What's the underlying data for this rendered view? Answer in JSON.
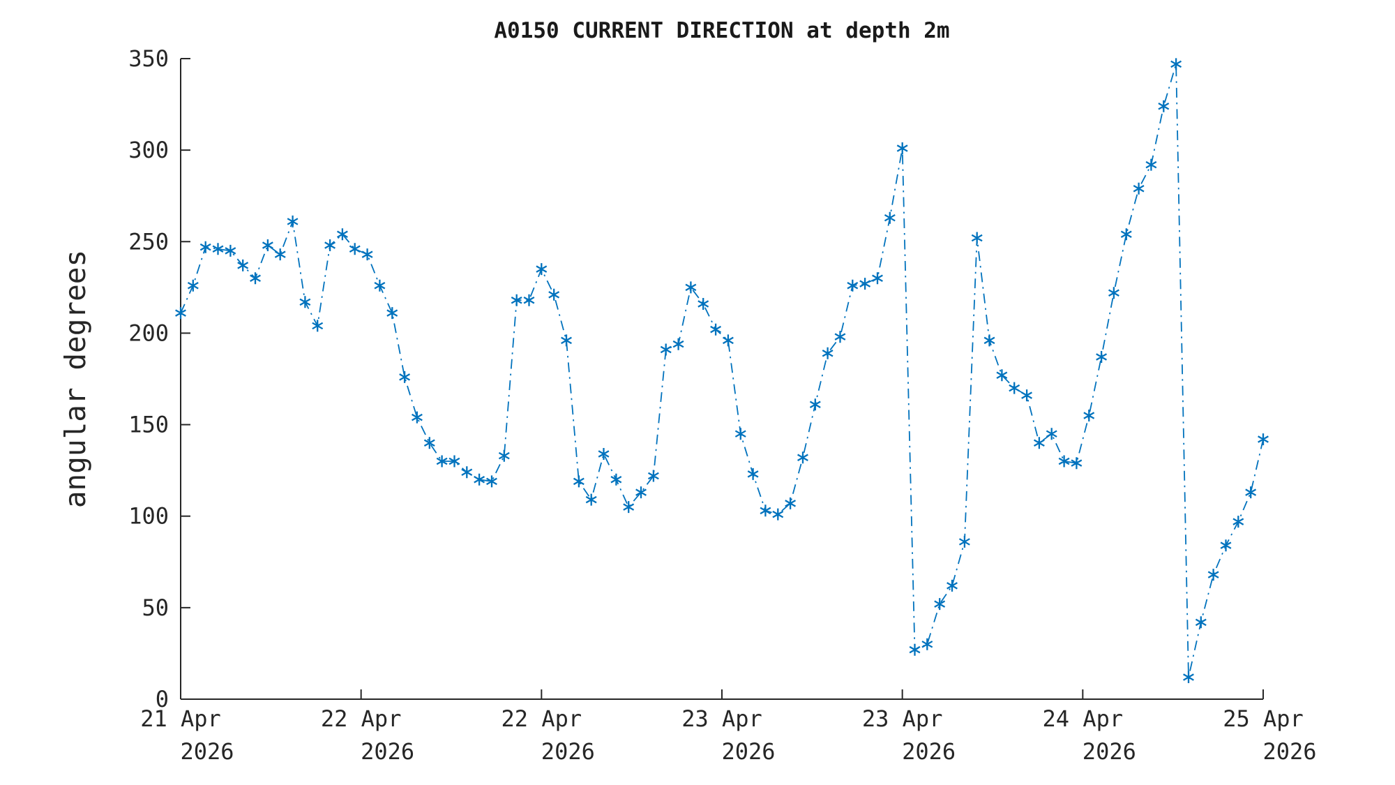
{
  "chart_data": {
    "type": "line",
    "title": "A0150 CURRENT DIRECTION at depth 2m",
    "ylabel": "angular degrees",
    "xlabel": "",
    "ylim": [
      0,
      350
    ],
    "y_ticks": [
      0,
      50,
      100,
      150,
      200,
      250,
      300,
      350
    ],
    "x_tick_labels": [
      {
        "line1": "21 Apr",
        "line2": "2026"
      },
      {
        "line1": "22 Apr",
        "line2": "2026"
      },
      {
        "line1": "22 Apr",
        "line2": "2026"
      },
      {
        "line1": "23 Apr",
        "line2": "2026"
      },
      {
        "line1": "23 Apr",
        "line2": "2026"
      },
      {
        "line1": "24 Apr",
        "line2": "2026"
      },
      {
        "line1": "25 Apr",
        "line2": "2026"
      }
    ],
    "grid": false,
    "legend": "none",
    "line_style": "dash-dot",
    "marker": "asterisk",
    "series_color": "#0072BD",
    "axis_color": "#262626",
    "series": [
      {
        "name": "current direction (angular degrees)",
        "values": [
          211,
          226,
          247,
          246,
          245,
          237,
          230,
          248,
          243,
          261,
          217,
          204,
          248,
          254,
          246,
          243,
          226,
          211,
          176,
          154,
          140,
          130,
          130,
          124,
          120,
          119,
          133,
          218,
          218,
          235,
          221,
          196,
          119,
          109,
          134,
          120,
          105,
          113,
          122,
          191,
          194,
          225,
          216,
          202,
          196,
          145,
          123,
          103,
          101,
          107,
          132,
          161,
          189,
          198,
          226,
          227,
          230,
          263,
          301,
          27,
          30,
          52,
          62,
          86,
          252,
          196,
          177,
          170,
          166,
          140,
          145,
          130,
          129,
          155,
          187,
          222,
          254,
          279,
          292,
          324,
          347,
          12,
          42,
          68,
          84,
          97,
          113,
          142
        ]
      }
    ]
  }
}
